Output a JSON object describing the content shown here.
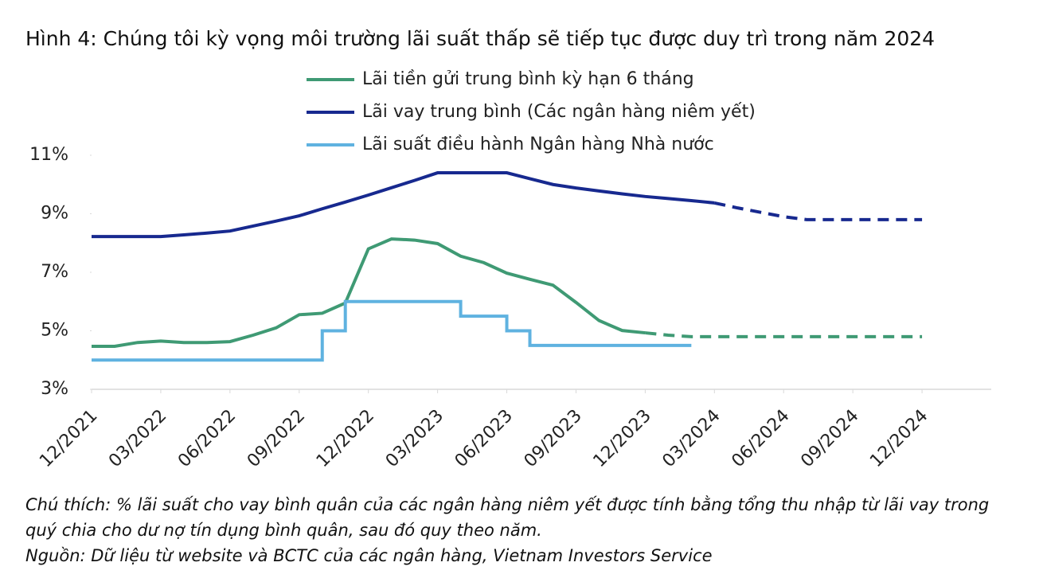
{
  "chart_data": {
    "type": "line",
    "title": "Hình 4: Chúng tôi kỳ vọng môi trường lãi suất thấp sẽ tiếp tục được duy trì trong năm 2024",
    "x": [
      "12/2021",
      "01/2022",
      "02/2022",
      "03/2022",
      "04/2022",
      "05/2022",
      "06/2022",
      "07/2022",
      "08/2022",
      "09/2022",
      "10/2022",
      "11/2022",
      "12/2022",
      "01/2023",
      "02/2023",
      "03/2023",
      "04/2023",
      "05/2023",
      "06/2023",
      "07/2023",
      "08/2023",
      "09/2023",
      "10/2023",
      "11/2023",
      "12/2023",
      "01/2024",
      "02/2024",
      "03/2024",
      "04/2024",
      "05/2024",
      "06/2024",
      "07/2024",
      "08/2024",
      "09/2024",
      "10/2024",
      "11/2024",
      "12/2024"
    ],
    "series": [
      {
        "name": "Lãi tiền gửi trung bình kỳ hạn 6 tháng",
        "color": "#3f9a74",
        "dashed_from": "12/2023",
        "values": [
          4.47,
          4.47,
          4.6,
          4.65,
          4.6,
          4.6,
          4.63,
          4.85,
          5.1,
          5.55,
          5.6,
          5.95,
          7.8,
          8.14,
          8.1,
          7.98,
          7.55,
          7.33,
          6.97,
          6.76,
          6.56,
          5.97,
          5.35,
          5.01,
          4.93,
          4.85,
          4.8,
          4.8,
          4.8,
          4.8,
          4.8,
          4.8,
          4.8,
          4.8,
          4.8,
          4.8,
          4.8
        ]
      },
      {
        "name": "Lãi vay trung bình (Các ngân hàng niêm yết)",
        "color": "#17298f",
        "dashed_from": "03/2024",
        "values": [
          8.22,
          8.22,
          8.22,
          8.22,
          8.28,
          8.34,
          8.41,
          8.58,
          8.75,
          8.93,
          9.17,
          9.4,
          9.64,
          9.89,
          10.14,
          10.4,
          10.4,
          10.4,
          10.4,
          10.2,
          10.0,
          9.88,
          9.78,
          9.68,
          9.59,
          9.52,
          9.45,
          9.37,
          9.2,
          9.05,
          8.9,
          8.8,
          8.8,
          8.8,
          8.8,
          8.8,
          8.8
        ]
      },
      {
        "name": "Lãi suất điều hành Ngân hàng Nhà nước",
        "color": "#5fb2e0",
        "step": true,
        "values": [
          4,
          4,
          4,
          4,
          4,
          4,
          4,
          4,
          4,
          4,
          5,
          6,
          6,
          6,
          6,
          6,
          5.5,
          5.5,
          5,
          4.5,
          4.5,
          4.5,
          4.5,
          4.5,
          4.5,
          4.5,
          4.5,
          null,
          null,
          null,
          null,
          null,
          null,
          null,
          null,
          null,
          null
        ]
      }
    ],
    "xlim": [
      "12/2021",
      "03/2025"
    ],
    "xticks": [
      "12/2021",
      "03/2022",
      "06/2022",
      "09/2022",
      "12/2022",
      "03/2023",
      "06/2023",
      "09/2023",
      "12/2023",
      "03/2024",
      "06/2024",
      "09/2024",
      "12/2024"
    ],
    "ylim": [
      3,
      11
    ],
    "yticks": [
      {
        "value": 3,
        "label": "3%"
      },
      {
        "value": 5,
        "label": "5%"
      },
      {
        "value": 7,
        "label": "7%"
      },
      {
        "value": 9,
        "label": "9%"
      },
      {
        "value": 11,
        "label": "11%"
      }
    ],
    "grid": false,
    "note": "Chú thích: % lãi suất cho vay bình quân của các ngân hàng niêm yết được tính bằng tổng thu nhập từ lãi vay trong quý chia cho dư nợ tín dụng bình quân, sau đó quy theo năm.",
    "source": "Nguồn: Dữ liệu từ website và BCTC của các ngân hàng, Vietnam Investors Service"
  }
}
